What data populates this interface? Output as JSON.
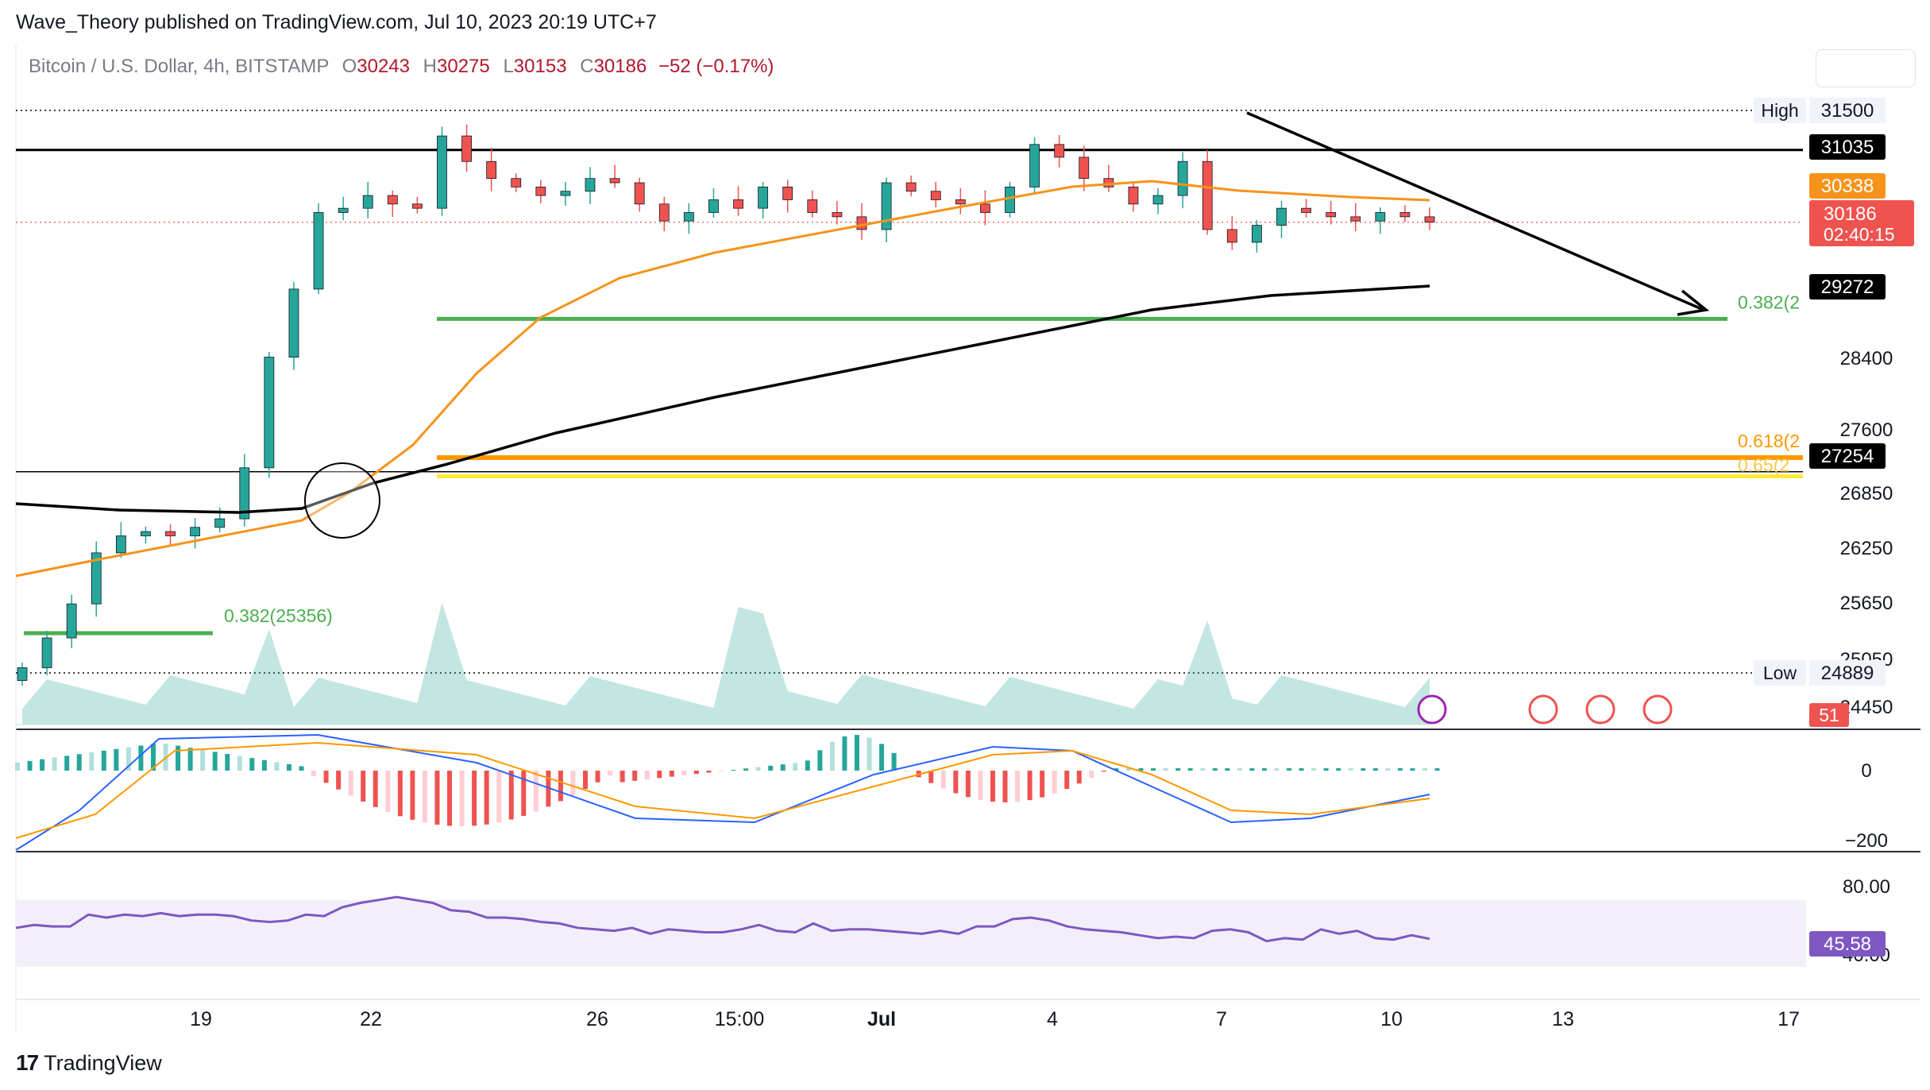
{
  "header": {
    "published_by": "Wave_Theory published on TradingView.com, Jul 10, 2023 20:19 UTC+7"
  },
  "legend": {
    "symbol": "Bitcoin / U.S. Dollar, 4h, BITSTAMP",
    "o_label": "O",
    "o_value": "30243",
    "h_label": "H",
    "h_value": "30275",
    "l_label": "L",
    "l_value": "30153",
    "c_label": "C",
    "c_value": "30186",
    "change": "−52 (−0.17%)"
  },
  "footer": {
    "brand": "TradingView"
  },
  "colors": {
    "up": "#26a69a",
    "down": "#ef5350",
    "ema_orange": "#f7931a",
    "ema_black": "#000000",
    "fib_green": "#4caf50",
    "fib_orange": "#ff9800",
    "fib_yellow": "#ffeb3b",
    "rsi_purple": "#7e57c2",
    "macd_blue": "#2962ff"
  },
  "chart_data": [
    {
      "type": "candlestick",
      "title": "Bitcoin / U.S. Dollar, 4h, BITSTAMP",
      "x_ticks": [
        "19",
        "22",
        "26",
        "15:00",
        "Jul",
        "4",
        "7",
        "10",
        "13",
        "17"
      ],
      "y_ticks": [
        "28400",
        "27600",
        "26850",
        "26250",
        "25650",
        "25050",
        "24450"
      ],
      "ylim": [
        24100,
        31900
      ],
      "ohlc_closes_approx": [
        24950,
        25300,
        25700,
        26300,
        26500,
        26550,
        26500,
        26600,
        26700,
        27300,
        28600,
        29400,
        30300,
        30350,
        30500,
        30400,
        30350,
        31200,
        30900,
        30700,
        30600,
        30500,
        30550,
        30700,
        30650,
        30400,
        30200,
        30300,
        30450,
        30350,
        30600,
        30450,
        30300,
        30250,
        30100,
        30650,
        30550,
        30450,
        30400,
        30300,
        30600,
        31100,
        30950,
        30700,
        30600,
        30400,
        30500,
        30900,
        30100,
        29950,
        30150,
        30350,
        30300,
        30250,
        30200,
        30300,
        30250,
        30186
      ],
      "current_price": "30186",
      "countdown": "02:40:15",
      "price_labels": [
        {
          "label": "High",
          "value": "31500"
        },
        {
          "label": "",
          "value": "31035"
        },
        {
          "label": "",
          "value": "30338"
        },
        {
          "label": "",
          "value": "29272"
        },
        {
          "label": "",
          "value": "27254"
        },
        {
          "label": "Low",
          "value": "24889"
        }
      ],
      "horizontal_lines": [
        {
          "value": 31500,
          "style": "dotted"
        },
        {
          "value": 31035,
          "style": "solid"
        },
        {
          "value": 27254,
          "style": "solid"
        },
        {
          "value": 24889,
          "style": "dotted"
        }
      ],
      "fib_levels": [
        {
          "label": "0.382(2",
          "value": 29050,
          "color": "#4caf50"
        },
        {
          "label": "0.618(2",
          "value": 27420,
          "color": "#ff9800"
        },
        {
          "label": "0.65(2",
          "value": 27200,
          "color": "#ffeb3b"
        },
        {
          "label": "0.382(25356)",
          "value": 25356,
          "color": "#4caf50"
        }
      ],
      "ema_orange_value": "30338",
      "ema_black_value": "29272"
    },
    {
      "type": "area",
      "title": "Volume",
      "value_label": "51"
    },
    {
      "type": "bar",
      "title": "MACD",
      "y_ticks": [
        "0",
        "−200"
      ]
    },
    {
      "type": "line",
      "title": "RSI",
      "y_ticks": [
        "80.00",
        "40.00"
      ],
      "current": "45.58",
      "values": [
        53,
        55,
        54,
        54,
        62,
        60,
        62,
        61,
        63,
        61,
        62,
        62,
        61,
        58,
        57,
        58,
        62,
        61,
        67,
        70,
        72,
        74,
        72,
        70,
        65,
        64,
        60,
        60,
        59,
        57,
        56,
        53,
        52,
        51,
        53,
        49,
        52,
        51,
        50,
        50,
        52,
        55,
        51,
        50,
        56,
        51,
        52,
        52,
        51,
        50,
        49,
        51,
        49,
        54,
        54,
        59,
        60,
        58,
        54,
        52,
        51,
        50,
        48,
        46,
        47,
        46,
        51,
        52,
        50,
        44,
        46,
        45,
        52,
        49,
        51,
        46,
        45,
        48,
        45.58
      ]
    }
  ]
}
